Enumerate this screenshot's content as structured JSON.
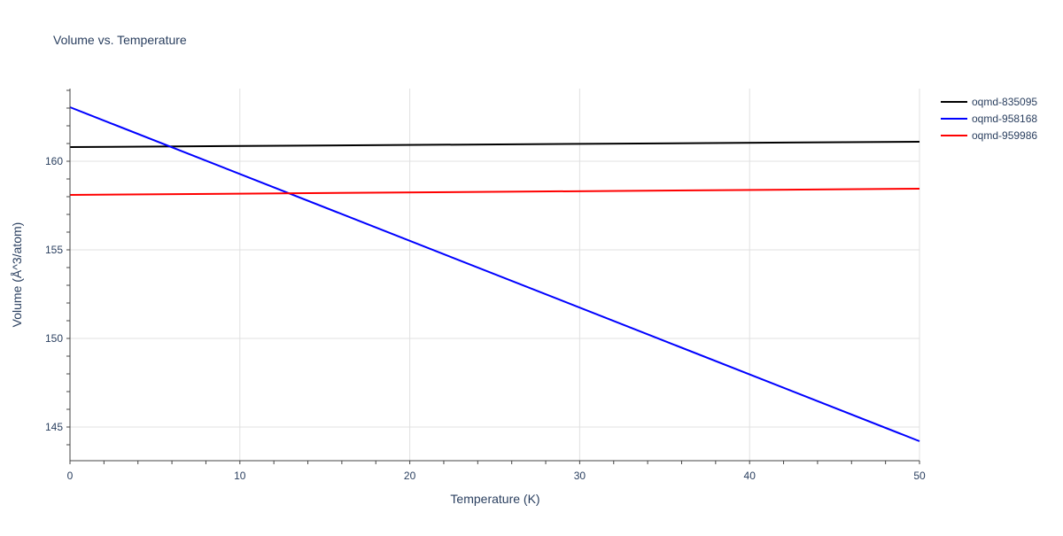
{
  "chart_data": {
    "type": "line",
    "title": "Volume vs. Temperature",
    "xlabel": "Temperature (K)",
    "ylabel": "Volume (Å^3/atom)",
    "xlim": [
      0,
      50
    ],
    "ylim": [
      143.1,
      164.1
    ],
    "x_ticks": [
      0,
      10,
      20,
      30,
      40,
      50
    ],
    "y_ticks": [
      145,
      150,
      155,
      160
    ],
    "grid": true,
    "legend_position": "top-right",
    "series": [
      {
        "name": "oqmd-835095",
        "color": "#000000",
        "x": [
          0,
          50
        ],
        "values": [
          160.8,
          161.1
        ]
      },
      {
        "name": "oqmd-958168",
        "color": "#0000ff",
        "x": [
          0,
          50
        ],
        "values": [
          163.05,
          144.2
        ]
      },
      {
        "name": "oqmd-959986",
        "color": "#ff0000",
        "x": [
          0,
          50
        ],
        "values": [
          158.1,
          158.45
        ]
      }
    ]
  }
}
